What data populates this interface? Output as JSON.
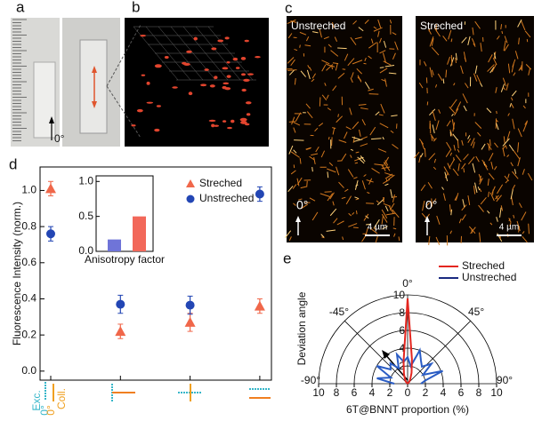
{
  "panels": {
    "labels": [
      "a",
      "b",
      "c",
      "d",
      "e"
    ],
    "a": {
      "angle": "0°"
    },
    "c": {
      "images": [
        {
          "title": "Unstreched",
          "angle": "0°",
          "scale": "4 µm"
        },
        {
          "title": "Streched",
          "angle": "0°",
          "scale": "4 µm"
        }
      ]
    }
  },
  "chart_data": [
    {
      "type": "scatter",
      "ylabel": "Fluorescence Intensity (norm.)",
      "categories": [
        null,
        null,
        null,
        null
      ],
      "annotations": [
        "Exc.",
        "0°",
        "Coll.",
        "0°"
      ],
      "series": [
        {
          "name": "Streched",
          "color": "#f0674a",
          "marker": "triangle",
          "values": [
            1.01,
            0.22,
            0.27,
            0.36
          ],
          "errors": [
            0.04,
            0.04,
            0.05,
            0.04
          ]
        },
        {
          "name": "Unstreched",
          "color": "#2346b4",
          "marker": "circle",
          "values": [
            0.76,
            0.37,
            0.365,
            0.98
          ],
          "errors": [
            0.04,
            0.05,
            0.05,
            0.04
          ]
        }
      ],
      "ylim": [
        -0.05,
        1.13
      ],
      "yticks": [
        {
          "value": 0,
          "label": "0.0"
        },
        {
          "value": 0.2,
          "label": "0.2"
        },
        {
          "value": 0.4,
          "label": "0.4"
        },
        {
          "value": 0.6,
          "label": "0.6"
        },
        {
          "value": 0.8,
          "label": "0.8"
        },
        {
          "value": 1,
          "label": "1.0"
        }
      ],
      "legend": "upper right"
    },
    {
      "type": "bar",
      "xlabel": "Anisotropy factor",
      "categories": [
        null,
        null
      ],
      "values": [
        0.17,
        0.5
      ],
      "colors": [
        "#6f74d8",
        "#f2685a"
      ],
      "ylim": [
        0,
        1.08
      ],
      "yticks": [
        {
          "value": 0,
          "label": "0.0"
        },
        {
          "value": 0.5,
          "label": "0.5"
        },
        {
          "value": 1,
          "label": "1.0"
        }
      ]
    },
    {
      "type": "polar",
      "ylabel": "Deviation angle",
      "xlabel": "6T@BNNT proportion (%)",
      "angles": [
        -90,
        -80,
        -70,
        -60,
        -50,
        -40,
        -30,
        -20,
        -10,
        0,
        10,
        20,
        30,
        40,
        50,
        60,
        70,
        80,
        90
      ],
      "series": [
        {
          "name": "Streched",
          "color": "#e4261f",
          "values": [
            0,
            0,
            0,
            0,
            0,
            0.3,
            0.6,
            1.2,
            2.6,
            9.6,
            2.8,
            1.3,
            0.6,
            0.3,
            0,
            0,
            0,
            0,
            0
          ]
        },
        {
          "name": "Unstreched",
          "color": "#2a5cc4",
          "values": [
            1.5,
            3.5,
            2,
            4,
            2.5,
            3,
            2,
            3.5,
            2.5,
            3,
            2,
            4,
            3,
            2.5,
            3.5,
            2,
            4.2,
            2,
            1.5
          ]
        }
      ],
      "rlim": [
        0,
        10
      ],
      "rticks": [
        2,
        4,
        6,
        8,
        10
      ],
      "xticks": [
        {
          "value": -10,
          "label": "10"
        },
        {
          "value": -8,
          "label": "8"
        },
        {
          "value": -6,
          "label": "6"
        },
        {
          "value": -4,
          "label": "4"
        },
        {
          "value": -2,
          "label": "2"
        },
        0,
        2,
        4,
        6,
        8,
        10
      ],
      "angle_ticks": [
        {
          "value": -90,
          "label": "-90°"
        },
        {
          "value": -45,
          "label": "-45°"
        },
        {
          "value": 0,
          "label": "0°"
        },
        {
          "value": 45,
          "label": "45°"
        },
        {
          "value": 90,
          "label": "90°"
        }
      ],
      "legend": "upper right"
    }
  ]
}
